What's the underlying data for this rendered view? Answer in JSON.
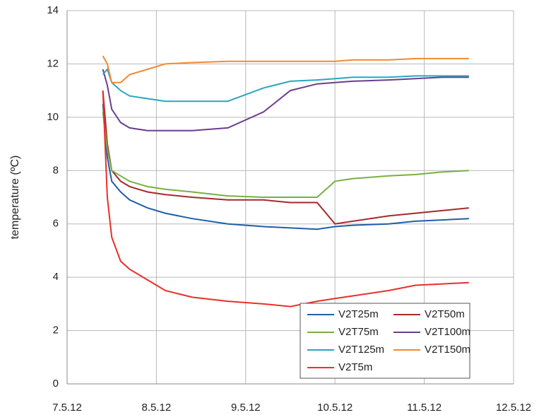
{
  "chart_data": {
    "type": "line",
    "y_label": "temperature (ºC)",
    "x": [
      7.4,
      7.45,
      7.5,
      7.6,
      7.7,
      7.9,
      8.1,
      8.4,
      8.8,
      9.2,
      9.5,
      9.8,
      10.0,
      10.2,
      10.6,
      10.9,
      11.2,
      11.5
    ],
    "series": [
      {
        "name": "V2T25m",
        "color": "#1f5fa8",
        "values": [
          10.5,
          8.5,
          7.6,
          7.2,
          6.9,
          6.6,
          6.4,
          6.2,
          6.0,
          5.9,
          5.85,
          5.8,
          5.9,
          5.95,
          6.0,
          6.1,
          6.15,
          6.2
        ]
      },
      {
        "name": "V2T50m",
        "color": "#a52a2a",
        "values": [
          11.0,
          9.0,
          8.0,
          7.6,
          7.4,
          7.2,
          7.1,
          7.0,
          6.9,
          6.9,
          6.8,
          6.8,
          6.0,
          6.1,
          6.3,
          6.4,
          6.5,
          6.6
        ]
      },
      {
        "name": "V2T75m",
        "color": "#77b041",
        "values": [
          10.2,
          8.8,
          8.0,
          7.8,
          7.6,
          7.4,
          7.3,
          7.2,
          7.05,
          7.0,
          7.0,
          7.0,
          7.6,
          7.7,
          7.8,
          7.85,
          7.95,
          8.0
        ]
      },
      {
        "name": "V2T100m",
        "color": "#6b3d8f",
        "values": [
          11.8,
          11.2,
          10.3,
          9.8,
          9.6,
          9.5,
          9.5,
          9.5,
          9.6,
          10.2,
          11.0,
          11.25,
          11.3,
          11.35,
          11.4,
          11.45,
          11.5,
          11.5
        ]
      },
      {
        "name": "V2T125m",
        "color": "#2aa6c0",
        "values": [
          11.6,
          11.8,
          11.3,
          11.0,
          10.8,
          10.7,
          10.6,
          10.6,
          10.6,
          11.1,
          11.35,
          11.4,
          11.45,
          11.5,
          11.5,
          11.55,
          11.55,
          11.55
        ]
      },
      {
        "name": "V2T150m",
        "color": "#f08a35",
        "values": [
          12.3,
          12.0,
          11.3,
          11.3,
          11.6,
          11.8,
          12.0,
          12.05,
          12.1,
          12.1,
          12.1,
          12.1,
          12.1,
          12.15,
          12.15,
          12.2,
          12.2,
          12.2
        ]
      },
      {
        "name": "V2T5m",
        "color": "#e8302a",
        "values": [
          11.0,
          7.0,
          5.5,
          4.6,
          4.3,
          3.9,
          3.5,
          3.25,
          3.1,
          3.0,
          2.9,
          3.1,
          3.2,
          3.3,
          3.5,
          3.7,
          3.75,
          3.8
        ]
      }
    ],
    "xlim": [
      7,
      12
    ],
    "xticks": [
      {
        "value": 7,
        "label": "7.5.12"
      },
      {
        "value": 8,
        "label": "8.5.12"
      },
      {
        "value": 9,
        "label": "9.5.12"
      },
      {
        "value": 10,
        "label": "10.5.12"
      },
      {
        "value": 11,
        "label": "11.5.12"
      },
      {
        "value": 12,
        "label": "12.5.12"
      }
    ],
    "ylim": [
      0,
      14
    ],
    "yticks": [
      0,
      2,
      4,
      6,
      8,
      10,
      12,
      14
    ],
    "grid": true,
    "legend": "lower right"
  }
}
